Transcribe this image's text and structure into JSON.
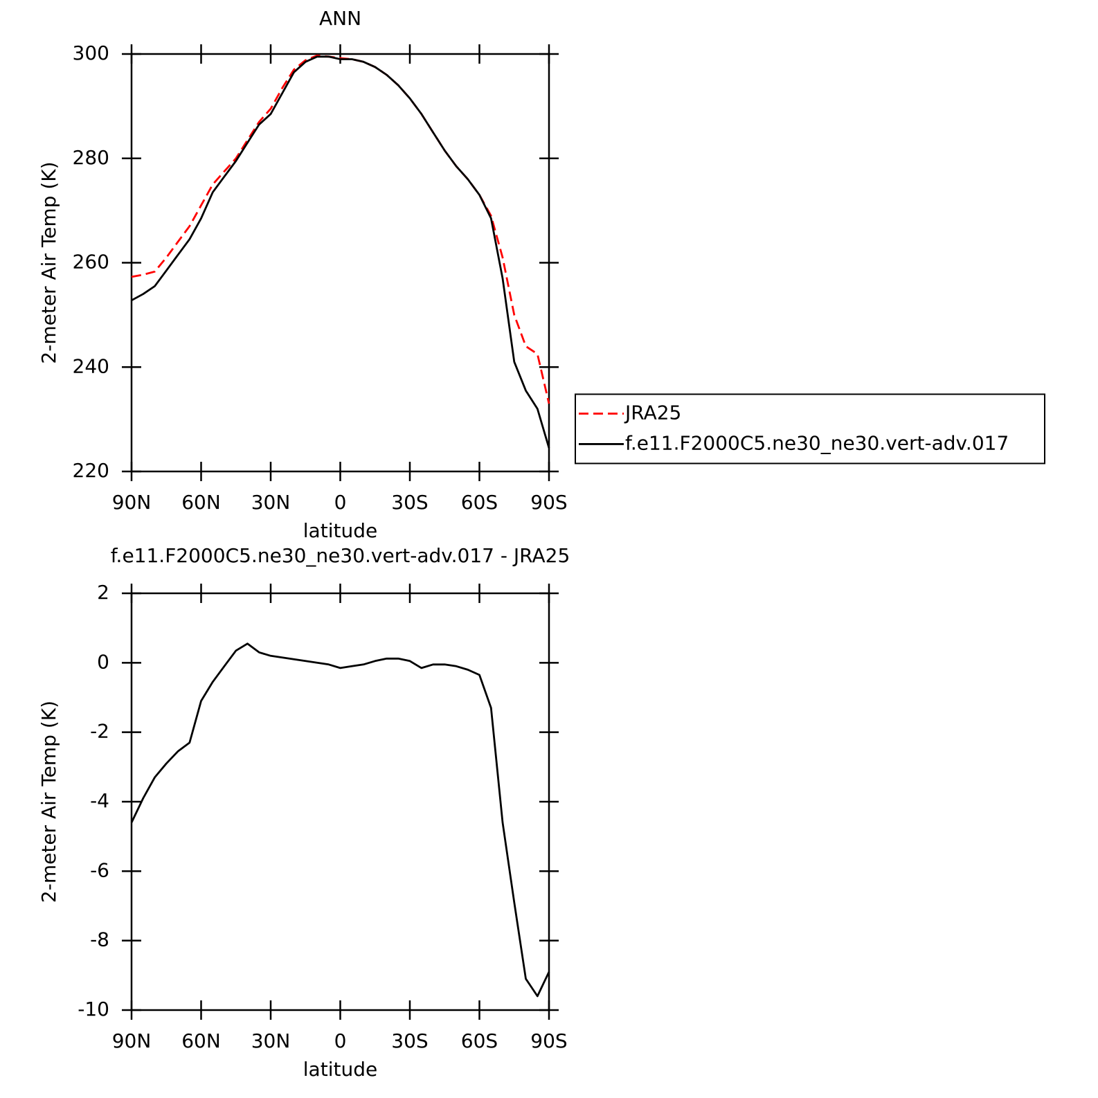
{
  "chart_data": [
    {
      "type": "line",
      "title": "ANN",
      "xlabel": "latitude",
      "ylabel": "2-meter Air Temp (K)",
      "x": [
        90,
        85,
        80,
        75,
        70,
        65,
        60,
        55,
        50,
        45,
        40,
        35,
        30,
        25,
        20,
        15,
        10,
        5,
        0,
        -5,
        -10,
        -15,
        -20,
        -25,
        -30,
        -35,
        -40,
        -45,
        -50,
        -55,
        -60,
        -65,
        -70,
        -75,
        -80,
        -85,
        -90
      ],
      "xlim": [
        90,
        -90
      ],
      "xticks": [
        {
          "value": 90,
          "label": "90N"
        },
        {
          "value": 60,
          "label": "60N"
        },
        {
          "value": 30,
          "label": "30N"
        },
        0,
        {
          "value": -30,
          "label": "30S"
        },
        {
          "value": -60,
          "label": "60S"
        },
        {
          "value": -90,
          "label": "90S"
        }
      ],
      "ylim": [
        220,
        300
      ],
      "yticks": [
        220,
        240,
        260,
        280,
        300
      ],
      "legend": "right",
      "series": [
        {
          "name": "JRA25",
          "color": "#ff0000",
          "linestyle": "dashed",
          "values": [
            257.3,
            257.7,
            258.3,
            261,
            264,
            267,
            271,
            275,
            277.5,
            280,
            283.5,
            287,
            289.5,
            293.5,
            297,
            298.8,
            299.7,
            299.5,
            299.2,
            299,
            298.5,
            297.5,
            296,
            294,
            291.5,
            288.5,
            285,
            281.5,
            278.5,
            276,
            273,
            269,
            261,
            250,
            244,
            242.5,
            233
          ]
        },
        {
          "name": "f.e11.F2000C5.ne30_ne30.vert-adv.017",
          "color": "#000000",
          "linestyle": "solid",
          "values": [
            252.8,
            254,
            255.5,
            258.5,
            261.5,
            264.5,
            268.5,
            273.5,
            276.5,
            279.5,
            283,
            286.5,
            288.5,
            292.5,
            296.5,
            298.5,
            299.5,
            299.5,
            299,
            299,
            298.5,
            297.5,
            296,
            294,
            291.5,
            288.5,
            285,
            281.5,
            278.5,
            276,
            273,
            268.5,
            257,
            241,
            235.5,
            232,
            224.5
          ]
        }
      ]
    },
    {
      "type": "line",
      "title": "f.e11.F2000C5.ne30_ne30.vert-adv.017 - JRA25",
      "xlabel": "latitude",
      "ylabel": "2-meter Air Temp (K)",
      "x": [
        90,
        85,
        80,
        75,
        70,
        65,
        60,
        55,
        50,
        45,
        40,
        35,
        30,
        25,
        20,
        15,
        10,
        5,
        0,
        -5,
        -10,
        -15,
        -20,
        -25,
        -30,
        -35,
        -40,
        -45,
        -50,
        -55,
        -60,
        -65,
        -70,
        -75,
        -80,
        -85,
        -90
      ],
      "xlim": [
        90,
        -90
      ],
      "xticks": [
        {
          "value": 90,
          "label": "90N"
        },
        {
          "value": 60,
          "label": "60N"
        },
        {
          "value": 30,
          "label": "30N"
        },
        0,
        {
          "value": -30,
          "label": "30S"
        },
        {
          "value": -60,
          "label": "60S"
        },
        {
          "value": -90,
          "label": "90S"
        }
      ],
      "ylim": [
        -10,
        2
      ],
      "yticks": [
        -10,
        -8,
        -6,
        -4,
        -2,
        0,
        2
      ],
      "series": [
        {
          "color": "#000000",
          "linestyle": "solid",
          "values": [
            -4.6,
            -3.9,
            -3.3,
            -2.9,
            -2.55,
            -2.3,
            -1.1,
            -0.55,
            -0.1,
            0.35,
            0.55,
            0.3,
            0.2,
            0.15,
            0.1,
            0.05,
            0,
            -0.05,
            -0.15,
            -0.1,
            -0.05,
            0.05,
            0.12,
            0.12,
            0.05,
            -0.15,
            -0.05,
            -0.05,
            -0.1,
            -0.2,
            -0.35,
            -1.3,
            -4.6,
            -6.9,
            -9.1,
            -9.6,
            -8.9
          ]
        }
      ]
    }
  ]
}
